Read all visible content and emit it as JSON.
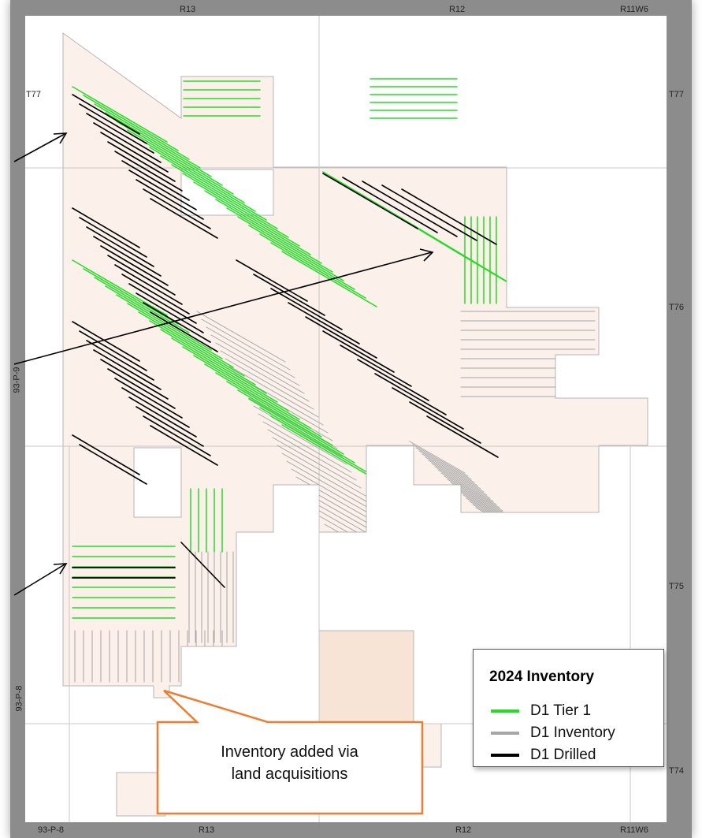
{
  "map": {
    "top_labels": [
      "R13",
      "R12",
      "R11W6"
    ],
    "bottom_labels": [
      "93-P-8",
      "R13",
      "R12",
      "R11W6"
    ],
    "left_top_label": "T77",
    "right_labels": [
      "T77",
      "T76",
      "T75",
      "T74"
    ],
    "left_labels": [
      "93-P-9",
      "93-P-8"
    ]
  },
  "legend": {
    "title": "2024 Inventory",
    "items": [
      {
        "label": "D1 Tier 1",
        "color": "#22dd22"
      },
      {
        "label": "D1 Inventory",
        "color": "#a6a6a6"
      },
      {
        "label": "D1 Drilled",
        "color": "#000000"
      }
    ]
  },
  "callout": {
    "line1": "Inventory added via",
    "line2": "land acquisitions",
    "border_color": "#ed7d31"
  },
  "colors": {
    "land": "#fbf0ea",
    "land_parcel": "#f8e3d7",
    "tier1": "#22dd22",
    "inventory": "#a6a6a6",
    "drilled": "#000000"
  }
}
